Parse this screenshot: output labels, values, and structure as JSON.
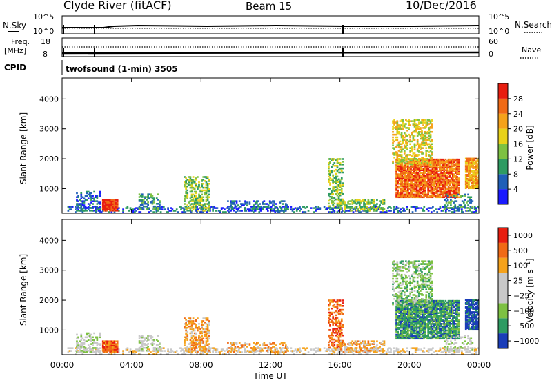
{
  "header": {
    "station": "Clyde River (fitACF)",
    "beam": "Beam 15",
    "date": "10/Dec/2016"
  },
  "noise_panel": {
    "left_label": "N.Sky",
    "right_label": "N.Search",
    "left_ticks": [
      "10^5",
      "10^0"
    ],
    "right_ticks": [
      "10^5",
      "10^0"
    ]
  },
  "freq_panel": {
    "left_label_1": "Freq.",
    "left_label_2": "[MHz]",
    "right_label": "Nave",
    "left_ticks": [
      "18",
      "8"
    ],
    "right_ticks": [
      "60",
      "0"
    ]
  },
  "cpid": {
    "label": "CPID",
    "value": "twofsound (1-min) 3505"
  },
  "colors": {
    "power": [
      "#1a1aff",
      "#1f5fb8",
      "#2e9b62",
      "#7dc142",
      "#e8d21a",
      "#f5a21b",
      "#f06a16",
      "#e81e10"
    ],
    "velocity": [
      "#e81e10",
      "#f06a16",
      "#f5a21b",
      "#c8c8c8",
      "#c8c8c8",
      "#7dc142",
      "#2e9b62",
      "#1a3db8"
    ]
  },
  "chart_data": [
    {
      "type": "heatmap",
      "name": "power",
      "ylabel": "Slant Range [km]",
      "yticks": [
        "1000",
        "2000",
        "3000",
        "4000"
      ],
      "ylim": [
        180,
        4700
      ],
      "xlim_hours": [
        0,
        24
      ],
      "colorbar_label": "Power [dB]",
      "colorbar_ticks": [
        "4",
        "8",
        "12",
        "16",
        "20",
        "24",
        "28"
      ],
      "clim": [
        0,
        32
      ]
    },
    {
      "type": "heatmap",
      "name": "velocity",
      "ylabel": "Slant Range [km]",
      "yticks": [
        "1000",
        "2000",
        "3000",
        "4000"
      ],
      "ylim": [
        180,
        4700
      ],
      "xlim_hours": [
        0,
        24
      ],
      "xlabel": "Time UT",
      "xticks": [
        "00:00",
        "04:00",
        "08:00",
        "12:00",
        "16:00",
        "20:00",
        "00:00"
      ],
      "colorbar_label": "Velocity [m s⁻¹]",
      "colorbar_ticks": [
        "1000",
        "500",
        "100",
        "25",
        "−25",
        "−100",
        "−500",
        "−1000"
      ]
    }
  ]
}
